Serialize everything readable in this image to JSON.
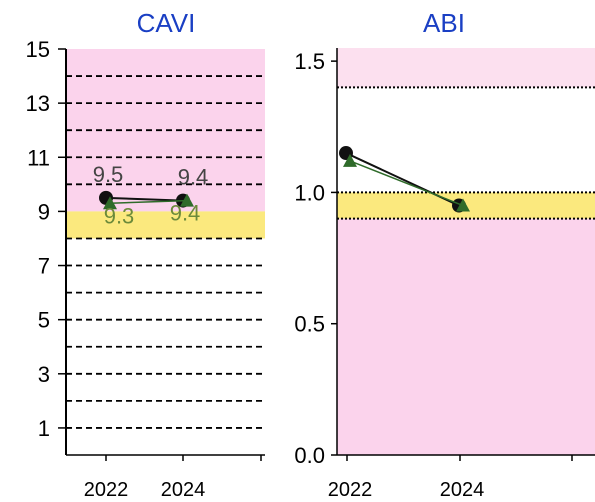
{
  "colors": {
    "pink": "#fbd3ec",
    "light_pink": "#fce0ef",
    "yellow": "#fbe97e",
    "title": "#1a3fc4",
    "series_a": "#111111",
    "series_b": "#2f6b2a",
    "label_a": "#444444",
    "label_b": "#6b8a3a"
  },
  "chart_data": [
    {
      "type": "line",
      "title": "CAVI",
      "xlabel": "",
      "ylabel": "",
      "categories": [
        "2022",
        "2024"
      ],
      "ylim": [
        0,
        15
      ],
      "yticks": [
        {
          "value": 15,
          "label": "15"
        },
        {
          "value": 13,
          "label": "13"
        },
        {
          "value": 11,
          "label": "11"
        },
        {
          "value": 9,
          "label": "9"
        },
        {
          "value": 7,
          "label": "7"
        },
        {
          "value": 5,
          "label": "5"
        },
        {
          "value": 3,
          "label": "3"
        },
        {
          "value": 1,
          "label": "1"
        }
      ],
      "gridlines": [
        14,
        13,
        12,
        11,
        10,
        8,
        7,
        6,
        5,
        4,
        3,
        2,
        1
      ],
      "bands": [
        {
          "from": 9,
          "to": 15,
          "color": "pink"
        },
        {
          "from": 8,
          "to": 9,
          "color": "yellow"
        }
      ],
      "series": [
        {
          "values": [
            9.5,
            9.4
          ],
          "labels": [
            "9.5",
            "9.4"
          ],
          "marker": "circle",
          "color_key": "series_a",
          "label_color_key": "label_a"
        },
        {
          "values": [
            9.3,
            9.4
          ],
          "labels": [
            "9.3",
            "9.4"
          ],
          "marker": "triangle",
          "color_key": "series_b",
          "label_color_key": "label_b"
        }
      ]
    },
    {
      "type": "line",
      "title": "ABI",
      "xlabel": "",
      "ylabel": "",
      "categories": [
        "2022",
        "2024"
      ],
      "ylim": [
        0,
        1.55
      ],
      "yticks": [
        {
          "value": 1.5,
          "label": "1.5"
        },
        {
          "value": 1.0,
          "label": "1.0"
        },
        {
          "value": 0.5,
          "label": "0.5"
        },
        {
          "value": 0.0,
          "label": "0.0"
        }
      ],
      "gridlines": [
        1.4,
        1.0,
        0.9
      ],
      "bands": [
        {
          "from": 1.4,
          "to": 1.55,
          "color": "light_pink"
        },
        {
          "from": 0.9,
          "to": 1.0,
          "color": "yellow"
        },
        {
          "from": 0,
          "to": 0.9,
          "color": "pink"
        }
      ],
      "series": [
        {
          "values": [
            1.15,
            0.95
          ],
          "labels": [],
          "marker": "circle",
          "color_key": "series_a"
        },
        {
          "values": [
            1.12,
            0.95
          ],
          "labels": [],
          "marker": "triangle",
          "color_key": "series_b"
        }
      ]
    }
  ]
}
